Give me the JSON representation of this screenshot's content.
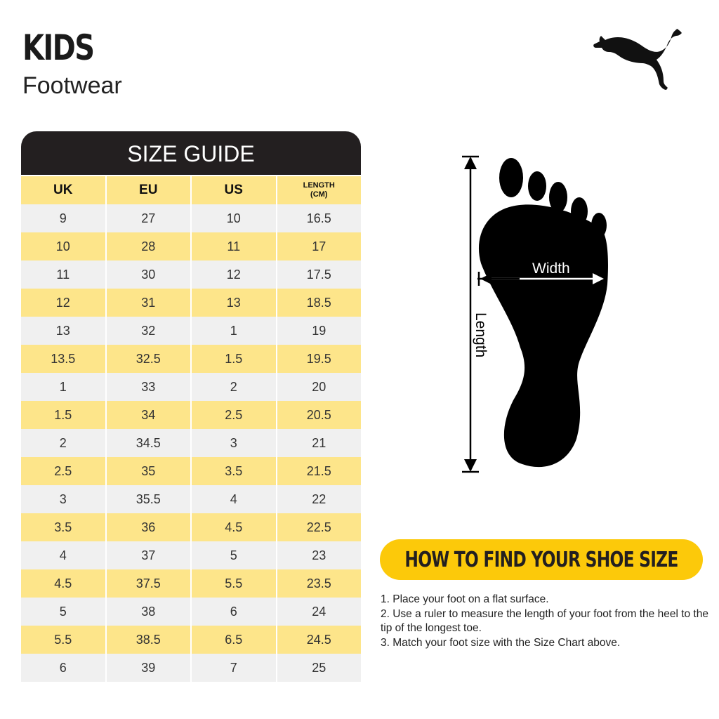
{
  "header": {
    "title": "KIDS",
    "subtitle": "Footwear",
    "logo": "PUMA"
  },
  "table": {
    "title": "SIZE GUIDE",
    "columns": [
      "UK",
      "EU",
      "US",
      "LENGTH\n(CM)"
    ],
    "rows": [
      [
        "9",
        "27",
        "10",
        "16.5"
      ],
      [
        "10",
        "28",
        "11",
        "17"
      ],
      [
        "11",
        "30",
        "12",
        "17.5"
      ],
      [
        "12",
        "31",
        "13",
        "18.5"
      ],
      [
        "13",
        "32",
        "1",
        "19"
      ],
      [
        "13.5",
        "32.5",
        "1.5",
        "19.5"
      ],
      [
        "1",
        "33",
        "2",
        "20"
      ],
      [
        "1.5",
        "34",
        "2.5",
        "20.5"
      ],
      [
        "2",
        "34.5",
        "3",
        "21"
      ],
      [
        "2.5",
        "35",
        "3.5",
        "21.5"
      ],
      [
        "3",
        "35.5",
        "4",
        "22"
      ],
      [
        "3.5",
        "36",
        "4.5",
        "22.5"
      ],
      [
        "4",
        "37",
        "5",
        "23"
      ],
      [
        "4.5",
        "37.5",
        "5.5",
        "23.5"
      ],
      [
        "5",
        "38",
        "6",
        "24"
      ],
      [
        "5.5",
        "38.5",
        "6.5",
        "24.5"
      ],
      [
        "6",
        "39",
        "7",
        "25"
      ]
    ]
  },
  "diagram": {
    "width_label": "Width",
    "length_label": "Length"
  },
  "howto": {
    "title": "HOW TO FIND YOUR SHOE SIZE",
    "steps": [
      "1. Place your foot on a flat surface.",
      "2. Use a ruler to measure the length of your foot from the heel to the tip of the longest toe.",
      "3. Match your foot size with the Size Chart above."
    ]
  },
  "colors": {
    "yellow": "#fcc90a",
    "light_yellow": "#fde58a",
    "dark": "#231f20",
    "grey": "#f0f0f0"
  }
}
